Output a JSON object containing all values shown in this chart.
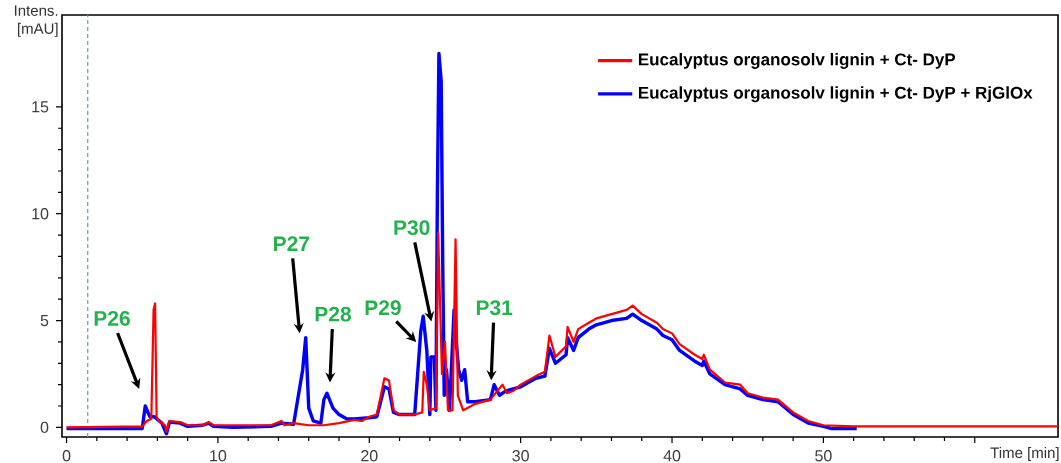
{
  "chart_data": {
    "type": "line",
    "xlabel": "Time [min]",
    "ylabel": "Intens. [mAU]",
    "xlim": [
      -0.3,
      65.5
    ],
    "ylim": [
      -0.45,
      19.3
    ],
    "xticks": [
      0,
      10,
      20,
      30,
      40,
      50,
      {
        "value": 60,
        "label": null
      }
    ],
    "yticks": [
      0,
      5,
      10,
      15
    ],
    "legend": "top right",
    "grid": false,
    "marker": "none",
    "line_style": "solid",
    "ref_lines": [
      {
        "axis": "x",
        "value": 1.4,
        "label": null,
        "color": "#5b9bd5",
        "line_style": "dashed"
      }
    ],
    "annotations": [
      "P26",
      "P27",
      "P28",
      "P29",
      {
        "text": "P30",
        "x": 24.1,
        "y": 4.95
      },
      "P31"
    ],
    "series": [
      {
        "name": "Eucalyptus organosolv lignin + Ct- DyP",
        "color": "#ff0000",
        "x": [
          0,
          5.0,
          5.3,
          5.6,
          5.75,
          5.85,
          5.95,
          6.1,
          6.5,
          6.6,
          6.8,
          7.5,
          8.0,
          9.0,
          9.4,
          9.7,
          13.5,
          14.2,
          14.4,
          15.0,
          16.0,
          17.0,
          18.0,
          19.0,
          19.5,
          20.0,
          20.5,
          21.0,
          21.3,
          21.6,
          22.0,
          23.0,
          23.5,
          23.6,
          23.8,
          24.0,
          24.4,
          24.55,
          24.65,
          24.8,
          25.0,
          25.2,
          25.5,
          25.7,
          25.85,
          26.2,
          27.0,
          28.0,
          28.8,
          29.1,
          29.5,
          30.0,
          30.5,
          31.0,
          31.6,
          31.9,
          32.3,
          33.0,
          33.1,
          33.5,
          33.8,
          34.5,
          35.0,
          36.0,
          37.0,
          37.4,
          38.0,
          39.0,
          39.4,
          40.0,
          40.5,
          41.5,
          42.0,
          42.1,
          42.5,
          43.5,
          44.5,
          45.0,
          46.0,
          47.0,
          48.0,
          49.0,
          50.0,
          52.0,
          65.5
        ],
        "values": [
          0,
          0.05,
          0.3,
          0.4,
          5.5,
          5.8,
          0.5,
          0.3,
          0.1,
          -0.2,
          0.3,
          0.25,
          0.1,
          0.1,
          0.25,
          0.1,
          0.1,
          0.3,
          0.1,
          0.2,
          0.1,
          0.1,
          0.2,
          0.35,
          0.3,
          0.5,
          0.6,
          2.3,
          2.2,
          0.8,
          0.6,
          0.6,
          0.7,
          2.6,
          2.0,
          0.8,
          0.9,
          9.1,
          6.5,
          2.5,
          4.0,
          0.8,
          0.8,
          8.8,
          1.5,
          0.8,
          1.1,
          1.3,
          2.0,
          1.6,
          1.7,
          2.0,
          2.2,
          2.4,
          2.6,
          4.3,
          3.3,
          3.8,
          4.7,
          4.0,
          4.6,
          4.9,
          5.1,
          5.3,
          5.5,
          5.7,
          5.3,
          4.9,
          4.6,
          4.4,
          3.9,
          3.4,
          3.2,
          3.4,
          2.7,
          2.1,
          2.0,
          1.6,
          1.4,
          1.3,
          0.7,
          0.3,
          0.1,
          0.05,
          0.05
        ]
      },
      {
        "name": "Eucalyptus organosolv lignin + Ct- DyP + RjGlOx",
        "color": "#0000ff",
        "x": [
          0,
          5.0,
          5.2,
          5.5,
          5.8,
          6.3,
          6.6,
          6.8,
          7.5,
          8.0,
          9.0,
          9.4,
          9.7,
          11.0,
          13.5,
          14.2,
          15.0,
          15.6,
          15.8,
          16.0,
          16.3,
          16.8,
          17.0,
          17.2,
          17.6,
          18.0,
          18.5,
          19.0,
          20.0,
          20.5,
          21.0,
          21.3,
          21.6,
          22.0,
          23.0,
          23.4,
          23.56,
          23.8,
          24.0,
          24.07,
          24.3,
          24.4,
          24.5,
          24.6,
          24.75,
          24.85,
          24.95,
          25.1,
          25.3,
          25.6,
          25.75,
          25.9,
          26.1,
          26.3,
          26.5,
          27.0,
          28.0,
          28.25,
          28.6,
          29.0,
          30.0,
          31.0,
          31.6,
          31.9,
          32.3,
          33.0,
          33.1,
          33.5,
          33.8,
          34.5,
          35.0,
          36.0,
          37.0,
          37.4,
          38.0,
          39.0,
          39.4,
          40.0,
          40.5,
          41.5,
          42.0,
          42.1,
          42.5,
          43.5,
          44.5,
          45.0,
          46.0,
          47.0,
          48.0,
          49.0,
          50.0,
          50.5,
          52.2
        ],
        "values": [
          -0.05,
          -0.05,
          1.0,
          0.5,
          0.5,
          0.2,
          -0.3,
          0.25,
          0.2,
          0.05,
          0.1,
          0.2,
          0.05,
          0.0,
          0.05,
          0.2,
          0.15,
          2.7,
          4.2,
          0.9,
          0.3,
          0.2,
          1.3,
          1.6,
          0.9,
          0.6,
          0.4,
          0.4,
          0.45,
          0.5,
          1.9,
          1.8,
          0.7,
          0.6,
          0.6,
          4.5,
          5.2,
          3.6,
          0.6,
          3.3,
          3.3,
          0.8,
          11.0,
          17.5,
          16.2,
          7.8,
          1.5,
          2.7,
          0.8,
          5.5,
          4.0,
          2.7,
          2.2,
          2.7,
          1.2,
          1.2,
          1.3,
          2.0,
          1.5,
          1.7,
          1.9,
          2.3,
          2.4,
          3.7,
          3.0,
          3.4,
          4.2,
          3.6,
          4.2,
          4.6,
          4.8,
          5.0,
          5.1,
          5.3,
          5.0,
          4.6,
          4.3,
          4.1,
          3.6,
          3.1,
          2.9,
          3.1,
          2.5,
          2.0,
          1.8,
          1.5,
          1.3,
          1.2,
          0.6,
          0.2,
          0.05,
          -0.05,
          -0.05
        ]
      }
    ]
  }
}
